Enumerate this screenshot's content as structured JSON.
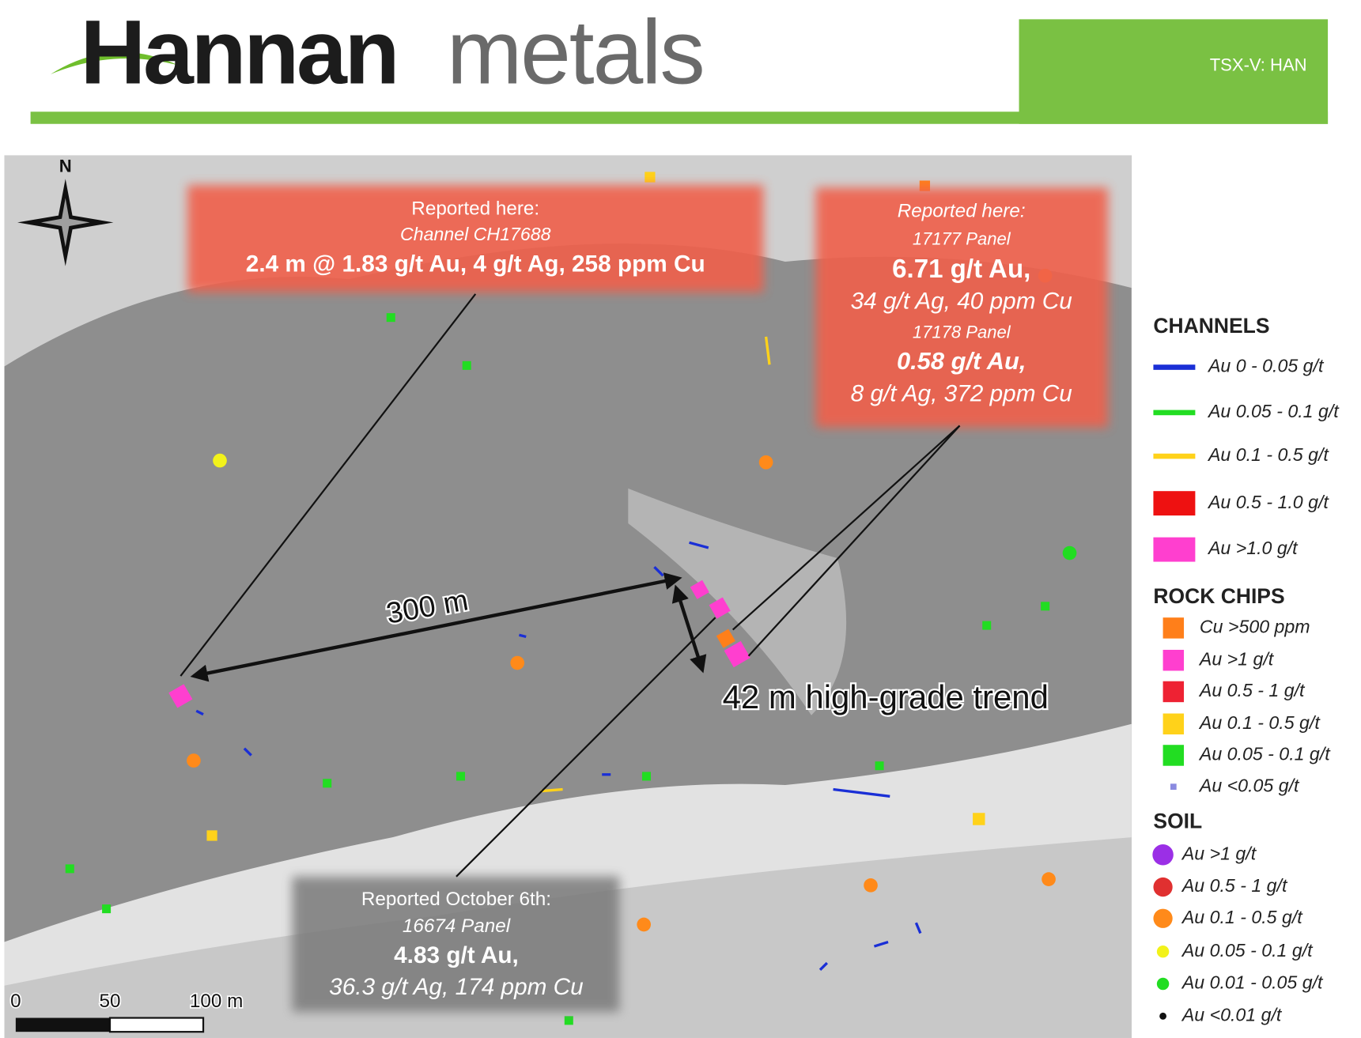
{
  "header": {
    "logo_dark": "Hannan",
    "logo_light": "metals",
    "ticker": "TSX-V: HAN"
  },
  "map": {
    "north": "N",
    "callouts": [
      {
        "lines": [
          "Reported here:",
          "Channel CH17688",
          "2.4 m @ 1.83 g/t Au, 4 g/t Ag, 258 ppm Cu"
        ]
      },
      {
        "lines": [
          "Reported here:",
          "17177 Panel",
          "6.71 g/t Au,",
          "34 g/t Ag, 40 ppm Cu",
          "17178 Panel",
          "0.58 g/t Au,",
          "8 g/t Ag, 372 ppm Cu"
        ]
      },
      {
        "lines": [
          "Reported October 6th:",
          "16674 Panel",
          "4.83 g/t Au,",
          "36.3 g/t Ag, 174 ppm Cu"
        ]
      }
    ],
    "distance_label": "300 m",
    "trend_label": "42 m high-grade trend",
    "scale_labels": [
      "0",
      "50",
      "100 m"
    ]
  },
  "legend": {
    "sections": [
      {
        "title": "CHANNELS",
        "items": [
          {
            "label": "Au 0 - 0.05 g/t",
            "color": "#1a2fd6"
          },
          {
            "label": "Au 0.05 - 0.1 g/t",
            "color": "#22dd22"
          },
          {
            "label": "Au 0.1 - 0.5 g/t",
            "color": "#ffd21a"
          },
          {
            "label": "Au 0.5 - 1.0 g/t",
            "color": "#ee1111"
          },
          {
            "label": "Au >1.0 g/t",
            "color": "#ff3fcf"
          }
        ]
      },
      {
        "title": "ROCK CHIPS",
        "items": [
          {
            "label": "Cu >500 ppm",
            "color": "#ff7f1a"
          },
          {
            "label": "Au >1 g/t",
            "color": "#ff3fcf"
          },
          {
            "label": "Au 0.5 - 1 g/t",
            "color": "#ee2233"
          },
          {
            "label": "Au 0.1 - 0.5 g/t",
            "color": "#ffd21a"
          },
          {
            "label": "Au 0.05 - 0.1 g/t",
            "color": "#22dd22"
          },
          {
            "label": "Au <0.05 g/t",
            "color": "#8a8ae0"
          }
        ]
      },
      {
        "title": "SOIL",
        "items": [
          {
            "label": "Au >1 g/t",
            "color": "#9b2fe6"
          },
          {
            "label": "Au 0.5 - 1 g/t",
            "color": "#e03030"
          },
          {
            "label": "Au 0.1 - 0.5 g/t",
            "color": "#ff8a1a"
          },
          {
            "label": "Au 0.05 - 0.1 g/t",
            "color": "#f2f21a"
          },
          {
            "label": "Au 0.01 - 0.05 g/t",
            "color": "#22dd22"
          },
          {
            "label": "Au <0.01 g/t",
            "color": "#111111"
          }
        ]
      }
    ]
  }
}
